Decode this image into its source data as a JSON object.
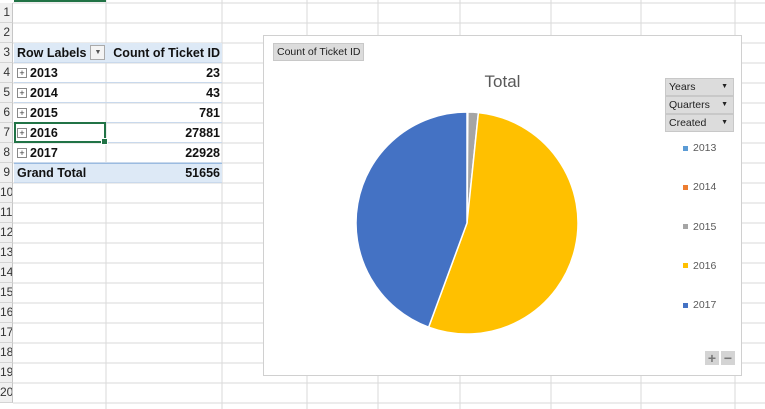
{
  "row_numbers": [
    "1",
    "2",
    "3",
    "4",
    "5",
    "6",
    "7",
    "8",
    "9",
    "10",
    "11",
    "12",
    "13",
    "14",
    "15",
    "16",
    "17",
    "18",
    "19",
    "20"
  ],
  "pivot": {
    "header_label": "Row Labels",
    "header_value": "Count of Ticket ID",
    "rows": [
      {
        "label": "2013",
        "value": "23"
      },
      {
        "label": "2014",
        "value": "43"
      },
      {
        "label": "2015",
        "value": "781"
      },
      {
        "label": "2016",
        "value": "27881"
      },
      {
        "label": "2017",
        "value": "22928"
      }
    ],
    "total_label": "Grand Total",
    "total_value": "51656"
  },
  "chart": {
    "value_field_button": "Count of Ticket ID",
    "axis_field_buttons": [
      "Years",
      "Quarters",
      "Created"
    ]
  },
  "chart_data": {
    "type": "pie",
    "title": "Total",
    "categories": [
      "2013",
      "2014",
      "2015",
      "2016",
      "2017"
    ],
    "values": [
      23,
      43,
      781,
      27881,
      22928
    ],
    "colors": [
      "#5b9bd5",
      "#ed7d31",
      "#a5a5a5",
      "#ffc000",
      "#4472c4"
    ],
    "legend": "right"
  }
}
